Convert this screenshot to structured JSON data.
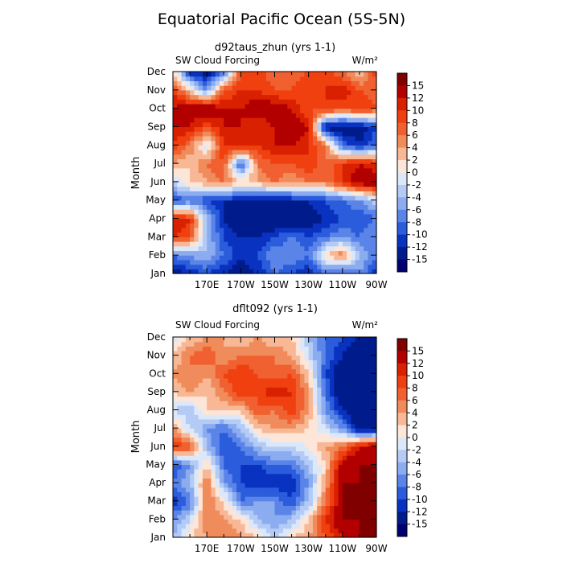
{
  "figure": {
    "title": "Equatorial Pacific Ocean (5S-5N)"
  },
  "colorbar": {
    "labels": [
      "15",
      "12",
      "10",
      "8",
      "6",
      "4",
      "2",
      "0",
      "-2",
      "-4",
      "-6",
      "-8",
      "-10",
      "-12",
      "-15"
    ],
    "colors": [
      "#800000",
      "#b20000",
      "#d92000",
      "#f04010",
      "#f06030",
      "#f08c5c",
      "#f8b896",
      "#fde6d8",
      "#dce8fa",
      "#b4ccf5",
      "#8cacf0",
      "#5a84e8",
      "#2a5cdc",
      "#0a32c0",
      "#001c8c",
      "#000070"
    ]
  },
  "chart_data": [
    {
      "type": "heatmap",
      "title": "d92taus_zhun (yrs 1-1)",
      "subtitle_left": "SW Cloud Forcing",
      "subtitle_right": "W/m²",
      "ylabel": "Month",
      "x_ticks": [
        "170E",
        "170W",
        "150W",
        "130W",
        "110W",
        "90W"
      ],
      "x_tick_values": [
        170,
        190,
        210,
        230,
        250,
        270
      ],
      "xlim": [
        150,
        270
      ],
      "y_ticks": [
        "Jan",
        "Feb",
        "Mar",
        "Apr",
        "May",
        "Jun",
        "Jul",
        "Aug",
        "Sep",
        "Oct",
        "Nov",
        "Dec"
      ],
      "ylim": [
        1,
        12
      ],
      "color_levels": [
        -15,
        -12,
        -10,
        -8,
        -6,
        -4,
        -2,
        0,
        2,
        4,
        6,
        8,
        10,
        12,
        15
      ],
      "x": [
        150,
        160,
        170,
        180,
        190,
        200,
        210,
        220,
        230,
        240,
        250,
        260,
        270
      ],
      "y": [
        1,
        2,
        3,
        4,
        5,
        6,
        7,
        8,
        9,
        10,
        11,
        12
      ],
      "z": [
        [
          -14,
          -12,
          -10,
          -12,
          -14,
          -12,
          -8,
          -10,
          -12,
          -8,
          -10,
          -6,
          -12
        ],
        [
          -8,
          -6,
          -4,
          -8,
          -12,
          -10,
          -6,
          -6,
          -8,
          2,
          6,
          -4,
          -8
        ],
        [
          10,
          8,
          -4,
          -10,
          -12,
          -12,
          -10,
          -8,
          -10,
          -8,
          -6,
          -8,
          -6
        ],
        [
          12,
          10,
          -4,
          -12,
          -15,
          -15,
          -15,
          -15,
          -14,
          -12,
          -10,
          -10,
          -8
        ],
        [
          -10,
          -8,
          -10,
          -12,
          -12,
          -14,
          -14,
          -12,
          -12,
          -10,
          -8,
          -6,
          -2
        ],
        [
          -2,
          2,
          4,
          6,
          2,
          4,
          6,
          4,
          6,
          6,
          10,
          14,
          15
        ],
        [
          4,
          2,
          6,
          8,
          -10,
          6,
          8,
          8,
          10,
          6,
          10,
          12,
          10
        ],
        [
          10,
          6,
          -2,
          10,
          12,
          10,
          12,
          12,
          10,
          6,
          -8,
          -12,
          -8
        ],
        [
          12,
          12,
          8,
          12,
          12,
          10,
          12,
          14,
          12,
          -14,
          -15,
          -14,
          -10
        ],
        [
          12,
          14,
          15,
          12,
          12,
          14,
          14,
          12,
          8,
          10,
          8,
          10,
          8
        ],
        [
          10,
          2,
          -6,
          8,
          10,
          10,
          8,
          8,
          10,
          10,
          12,
          8,
          6
        ],
        [
          2,
          -12,
          -14,
          -8,
          8,
          10,
          6,
          6,
          8,
          10,
          6,
          2,
          10
        ]
      ]
    },
    {
      "type": "heatmap",
      "title": "dflt092 (yrs 1-1)",
      "subtitle_left": "SW Cloud Forcing",
      "subtitle_right": "W/m²",
      "ylabel": "Month",
      "x_ticks": [
        "170E",
        "170W",
        "150W",
        "130W",
        "110W",
        "90W"
      ],
      "x_tick_values": [
        170,
        190,
        210,
        230,
        250,
        270
      ],
      "xlim": [
        150,
        270
      ],
      "y_ticks": [
        "Jan",
        "Feb",
        "Mar",
        "Apr",
        "May",
        "Jun",
        "Jul",
        "Aug",
        "Sep",
        "Oct",
        "Nov",
        "Dec"
      ],
      "ylim": [
        1,
        12
      ],
      "color_levels": [
        -15,
        -12,
        -10,
        -8,
        -6,
        -4,
        -2,
        0,
        2,
        4,
        6,
        8,
        10,
        12,
        15
      ],
      "x": [
        150,
        160,
        170,
        180,
        190,
        200,
        210,
        220,
        230,
        240,
        250,
        260,
        270
      ],
      "y": [
        1,
        2,
        3,
        4,
        5,
        6,
        7,
        8,
        9,
        10,
        11,
        12
      ],
      "z": [
        [
          -4,
          2,
          4,
          6,
          4,
          2,
          -2,
          2,
          4,
          8,
          12,
          15,
          15
        ],
        [
          -6,
          -2,
          6,
          4,
          2,
          -4,
          -6,
          -4,
          2,
          10,
          15,
          15,
          15
        ],
        [
          -12,
          -8,
          6,
          2,
          -8,
          -6,
          -6,
          -10,
          -4,
          6,
          15,
          15,
          15
        ],
        [
          -8,
          -4,
          6,
          -6,
          -10,
          -12,
          -12,
          -12,
          -6,
          4,
          15,
          15,
          15
        ],
        [
          -10,
          -6,
          2,
          -8,
          -10,
          -10,
          -8,
          -8,
          -4,
          2,
          14,
          15,
          15
        ],
        [
          10,
          8,
          -4,
          -10,
          -8,
          -4,
          -2,
          -2,
          0,
          4,
          6,
          12,
          15
        ],
        [
          4,
          -2,
          -6,
          -8,
          -4,
          2,
          4,
          4,
          2,
          -2,
          -6,
          -15,
          -15
        ],
        [
          -2,
          -4,
          2,
          2,
          2,
          8,
          6,
          10,
          4,
          -6,
          -12,
          -15,
          -15
        ],
        [
          2,
          4,
          2,
          6,
          10,
          8,
          12,
          10,
          4,
          -8,
          -15,
          -15,
          -15
        ],
        [
          4,
          6,
          4,
          8,
          10,
          8,
          6,
          8,
          2,
          -10,
          -15,
          -15,
          -15
        ],
        [
          2,
          6,
          8,
          4,
          6,
          6,
          6,
          4,
          -2,
          -8,
          -12,
          -15,
          -15
        ],
        [
          -2,
          2,
          4,
          4,
          2,
          4,
          2,
          2,
          -4,
          -8,
          -10,
          -12,
          -15
        ]
      ]
    }
  ]
}
